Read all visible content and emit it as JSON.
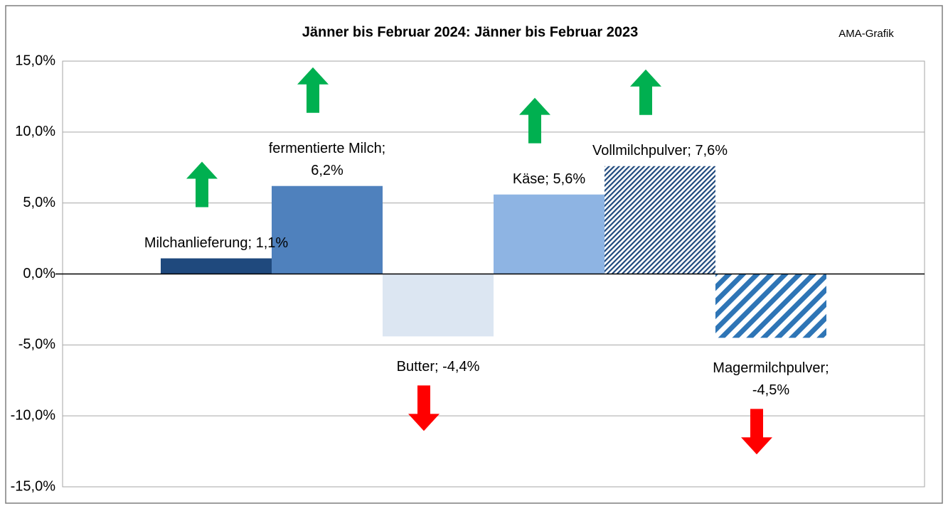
{
  "chart_data": {
    "type": "bar",
    "title": "Jänner bis Februar 2024: Jänner bis Februar 2023",
    "annotation": "AMA-Grafik",
    "categories": [
      null
    ],
    "ylim": [
      -15,
      15
    ],
    "yticks": [
      {
        "value": -15,
        "label": "-15,0%"
      },
      {
        "value": -10,
        "label": "-10,0%"
      },
      {
        "value": -5,
        "label": "-5,0%"
      },
      {
        "value": 0,
        "label": "0,0%"
      },
      {
        "value": 5,
        "label": "5,0%"
      },
      {
        "value": 10,
        "label": "10,0%"
      },
      {
        "value": 15,
        "label": "15,0%"
      }
    ],
    "grid": true,
    "series": [
      {
        "color": "#1f497d",
        "values": [
          1.1
        ],
        "value_labels": [
          "Milchanlieferung; 1,1%"
        ]
      },
      {
        "color": "#4f81bd",
        "values": [
          6.2
        ],
        "value_labels": [
          "fermentierte Milch; 6,2%"
        ]
      },
      {
        "color": "#dce6f2",
        "values": [
          -4.4
        ],
        "value_labels": [
          "Butter; -4,4%"
        ]
      },
      {
        "color": "#8eb4e3",
        "values": [
          5.6
        ],
        "value_labels": [
          "Käse; 5,6%"
        ]
      },
      {
        "color": "#1f497d",
        "pattern": "hatch-fine",
        "values": [
          7.6
        ],
        "value_labels": [
          "Vollmilchpulver; 7,6%"
        ]
      },
      {
        "color": "#2e75b6",
        "pattern": "hatch-wide",
        "values": [
          -4.5
        ],
        "value_labels": [
          "Magermilchpulver; -4,5%"
        ]
      }
    ]
  }
}
